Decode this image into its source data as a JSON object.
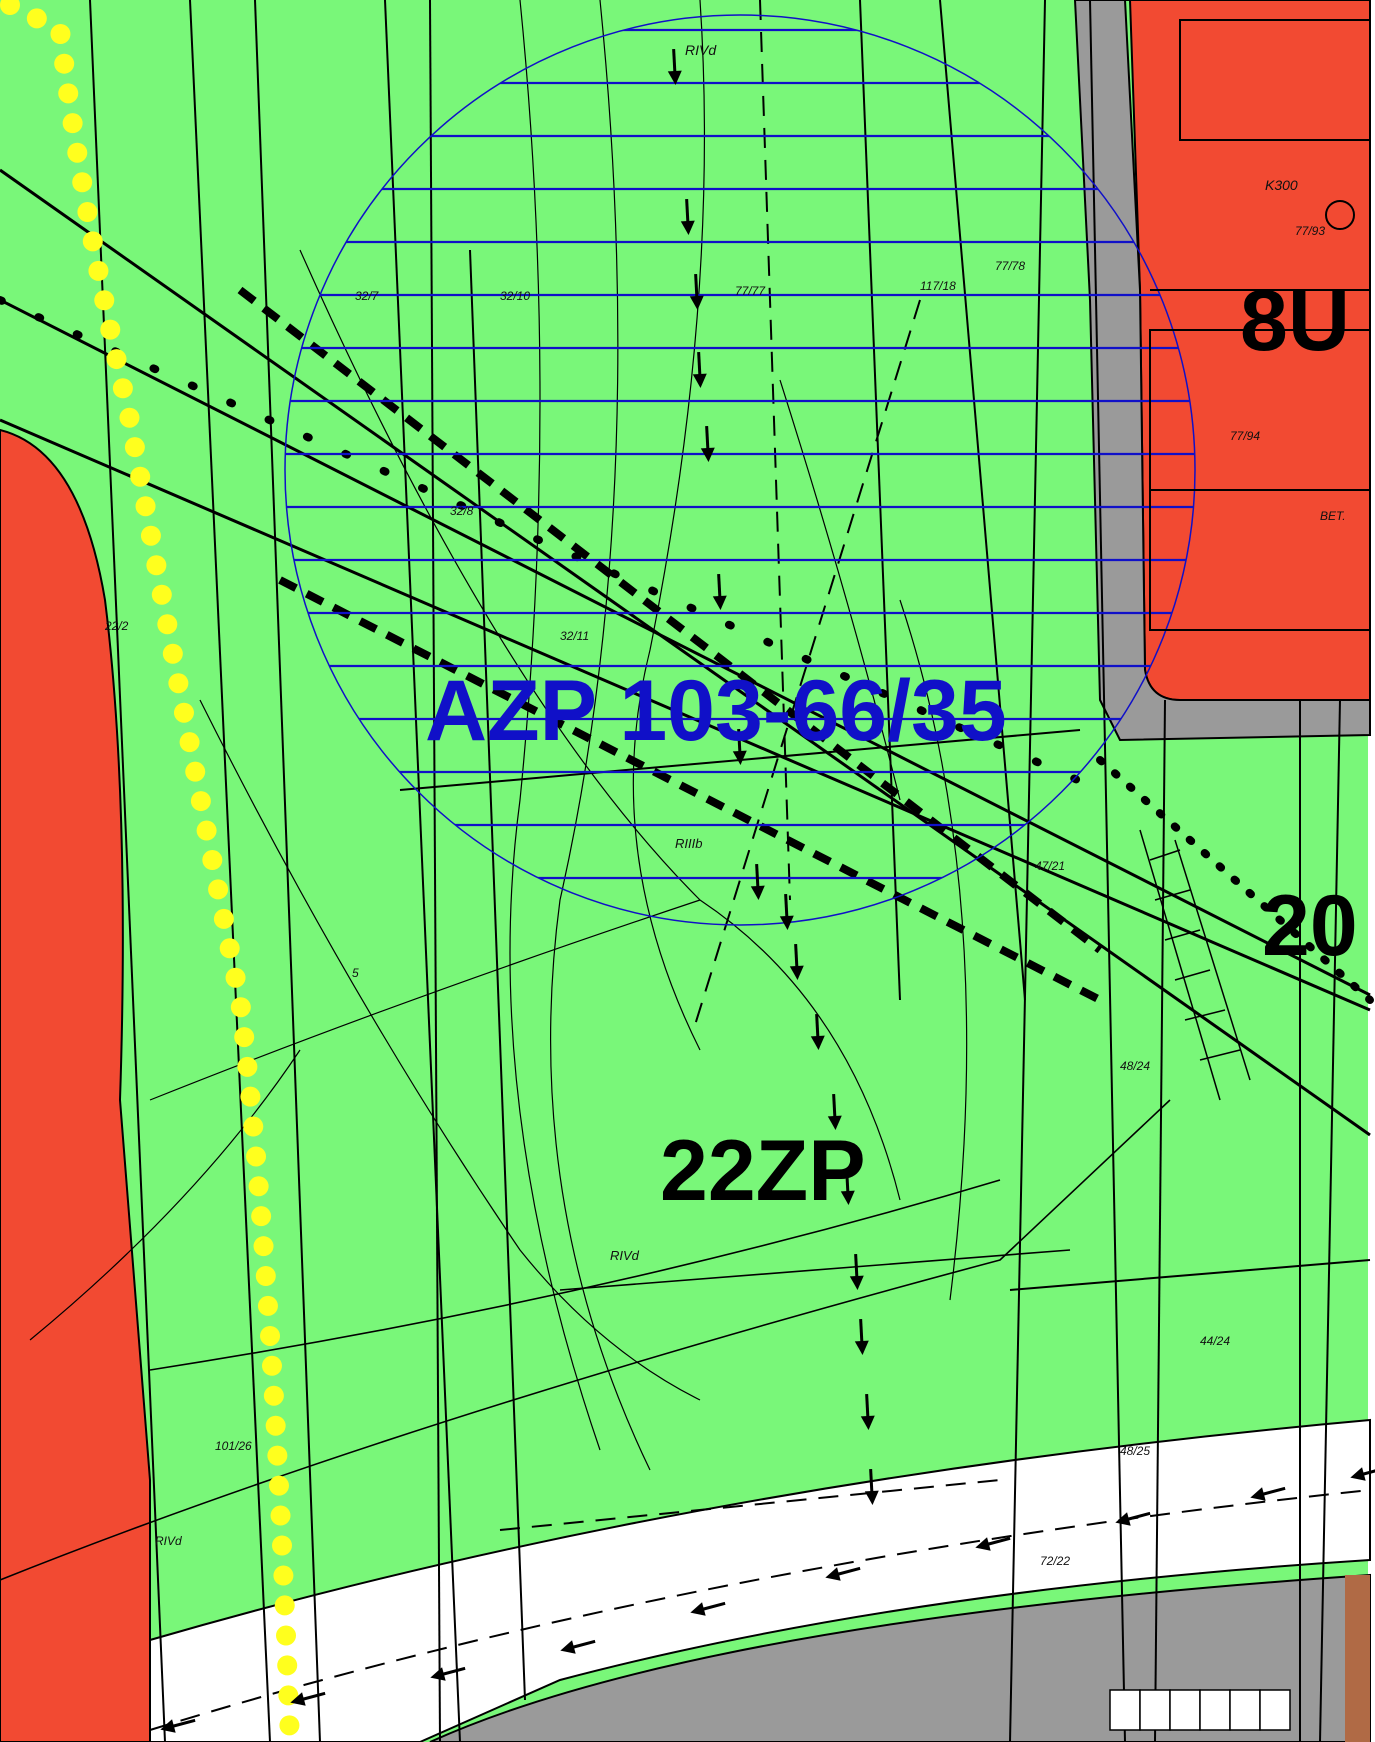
{
  "colors": {
    "green": "#79f779",
    "red": "#f24a32",
    "gray": "#9a9a9a",
    "white": "#ffffff",
    "blue": "#1010c8",
    "yellow": "#ffff1e",
    "brown": "#b06a45",
    "line": "#000000"
  },
  "labels": {
    "azp": "AZP 103-66/35",
    "zone_22zp": "22ZP",
    "zone_8u": "8U",
    "zone_20": "20"
  },
  "small_labels": {
    "rivd_top": "RIVd",
    "rivd_mid": "RIVd",
    "rivd_left": "RIVd",
    "rillb": "RIIIb",
    "p32_7": "32/7",
    "p32_10": "32/10",
    "p77_77": "77/77",
    "p117_18": "117/18",
    "p77_78": "77/78",
    "p32_8": "32/8",
    "p32_11": "32/11",
    "p77_94": "77/94",
    "p77_93": "77/93",
    "p22_2": "22/2",
    "p47_21": "47/21",
    "p44_24": "44/24",
    "p48_25": "48/25",
    "p101_26": "101/26",
    "p48_24": "48/24",
    "p72_22": "72/22",
    "bet": "BET.",
    "k300": "K300",
    "five": "5"
  }
}
